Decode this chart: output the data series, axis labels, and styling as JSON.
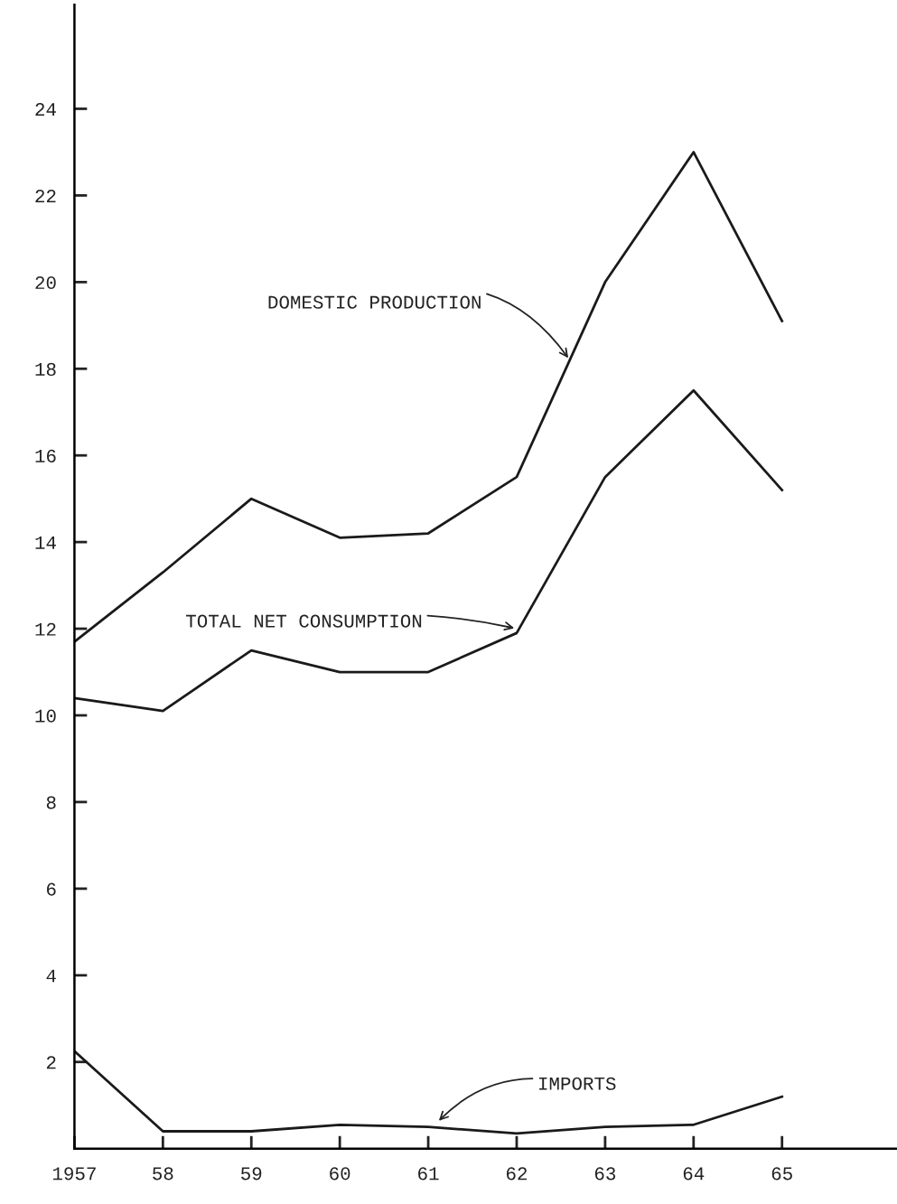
{
  "chart_data": {
    "type": "line",
    "x": [
      1957,
      1958,
      1959,
      1960,
      1961,
      1962,
      1963,
      1964,
      1965
    ],
    "series": [
      {
        "color": "#1a1a1a",
        "values": [
          11.7,
          13.3,
          15.0,
          14.1,
          14.2,
          15.5,
          20.0,
          23.0,
          19.1
        ]
      },
      {
        "color": "#1a1a1a",
        "values": [
          10.4,
          10.1,
          11.5,
          11.0,
          11.0,
          11.9,
          15.5,
          17.5,
          15.2
        ]
      },
      {
        "color": "#1a1a1a",
        "values": [
          2.25,
          0.4,
          0.4,
          0.55,
          0.5,
          0.35,
          0.5,
          0.55,
          1.2
        ]
      }
    ],
    "xlim": [
      1957,
      1966.3
    ],
    "xticks": [
      {
        "value": 1957,
        "label": "1957"
      },
      {
        "value": 1958,
        "label": "58"
      },
      {
        "value": 1959,
        "label": "59"
      },
      {
        "value": 1960,
        "label": "60"
      },
      {
        "value": 1961,
        "label": "61"
      },
      {
        "value": 1962,
        "label": "62"
      },
      {
        "value": 1963,
        "label": "63"
      },
      {
        "value": 1964,
        "label": "64"
      },
      {
        "value": 1965,
        "label": "65"
      }
    ],
    "ylim": [
      0,
      26.4
    ],
    "yticks": [
      2,
      4,
      6,
      8,
      10,
      12,
      14,
      16,
      18,
      20,
      22,
      24
    ],
    "annotations": [
      {
        "text": "DOMESTIC PRODUCTION",
        "x": 1962.6,
        "y": 18.2
      },
      {
        "text": "TOTAL NET CONSUMPTION",
        "x": 1962.0,
        "y": 12.0
      },
      {
        "text": "IMPORTS",
        "x": 1961.1,
        "y": 0.6
      }
    ],
    "grid": false,
    "legend": false,
    "marker": "none",
    "line_style": "solid"
  }
}
